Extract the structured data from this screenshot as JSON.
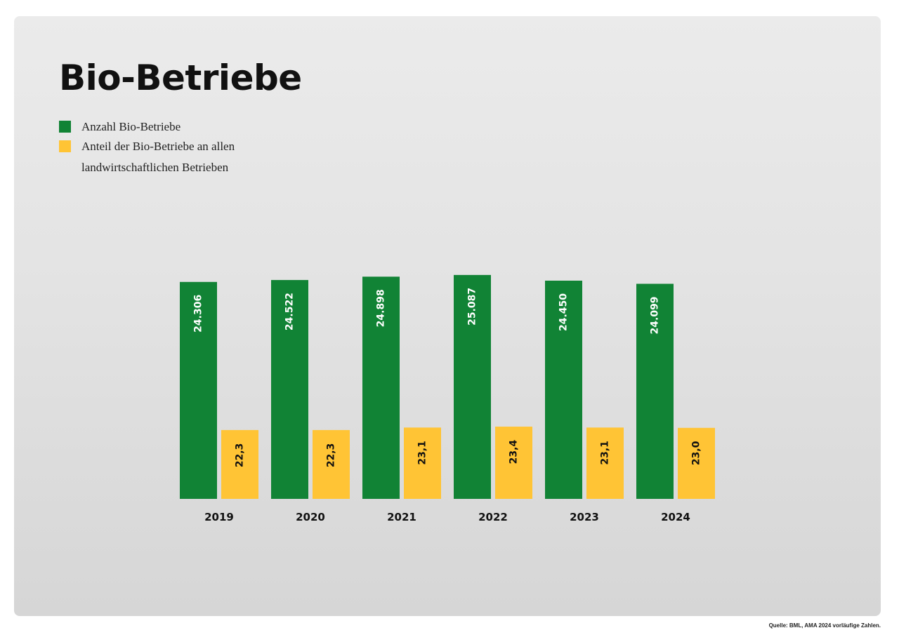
{
  "colors": {
    "anzahl": "#118335",
    "anteil": "#ffc435"
  },
  "chart_data": {
    "type": "bar",
    "title": "Bio-Betriebe",
    "categories": [
      "2019",
      "2020",
      "2021",
      "2022",
      "2023",
      "2024"
    ],
    "series": [
      {
        "name": "Anzahl Bio-Betriebe",
        "values": [
          24306,
          24522,
          24898,
          25087,
          24450,
          24099
        ],
        "labels": [
          "24.306",
          "24.522",
          "24.898",
          "25.087",
          "24.450",
          "24.099"
        ]
      },
      {
        "name": "Anteil der Bio-Betriebe an allen landwirtschaftlichen Betrieben",
        "values": [
          22.3,
          22.3,
          23.1,
          23.4,
          23.1,
          23.0
        ],
        "labels": [
          "22,3",
          "22,3",
          "23,1",
          "23,4",
          "23,1",
          "23,0"
        ]
      }
    ],
    "legend_position": "top-left",
    "grid": false
  },
  "source": "Quelle: BML, AMA 2024 vorläufige Zahlen."
}
